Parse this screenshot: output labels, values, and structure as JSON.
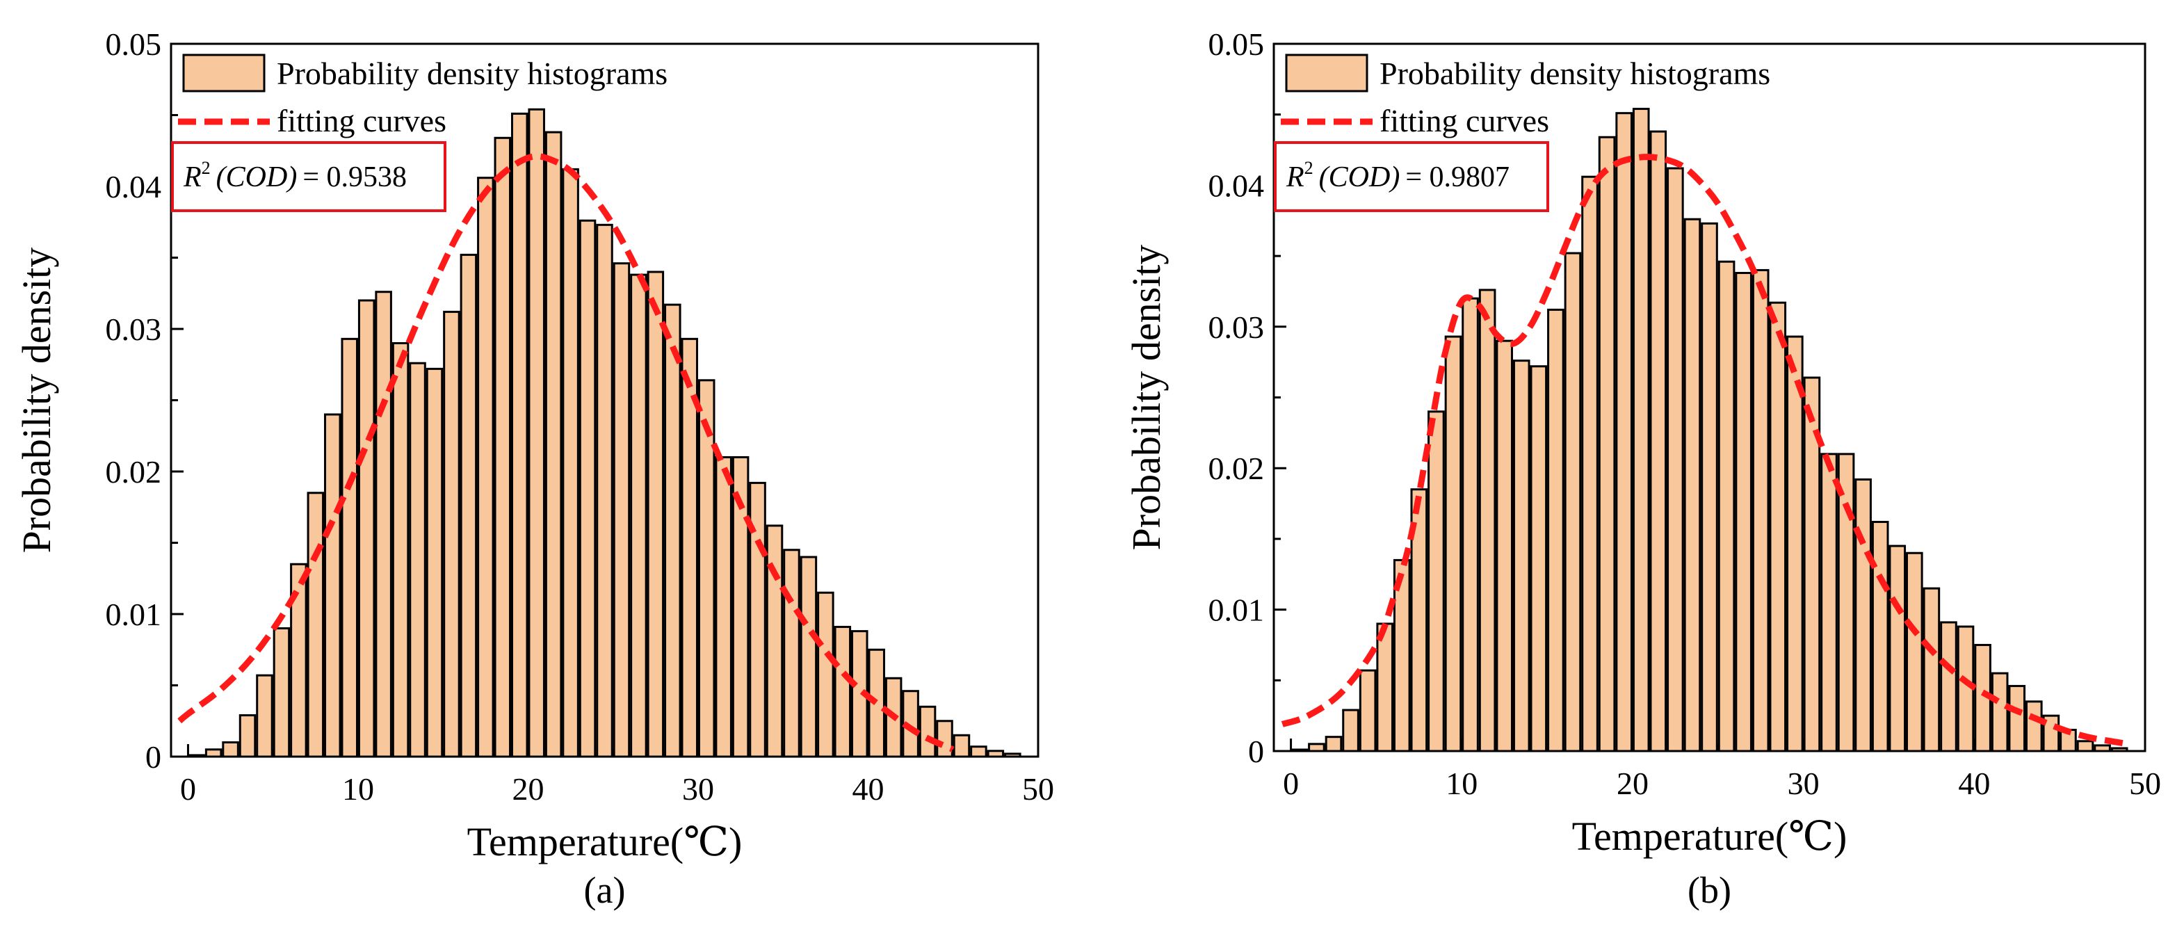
{
  "chart_data": [
    {
      "type": "bar",
      "panel_label": "(a)",
      "xlabel": "Temperature(℃)",
      "ylabel": "Probability density",
      "xlim": [
        -1,
        50
      ],
      "ylim": [
        0,
        0.05
      ],
      "xticks": [
        0,
        10,
        20,
        30,
        40,
        50
      ],
      "yticks": [
        0,
        0.01,
        0.02,
        0.03,
        0.04,
        0.05
      ],
      "ytick_labels": [
        "0",
        "0.01",
        "0.02",
        "0.03",
        "0.04",
        "0.05"
      ],
      "legend": {
        "placement": "top-left",
        "entries": [
          "Probability density histograms",
          "fitting curves"
        ]
      },
      "annotation": {
        "lhs": "R²(COD)",
        "r2_label": "R",
        "r2_sup": "2",
        "cod_label": "(COD)",
        "equals": "= ",
        "value": "0.9538"
      },
      "bins": [
        0,
        1,
        2,
        3,
        4,
        5,
        6,
        7,
        8,
        9,
        10,
        11,
        12,
        13,
        14,
        15,
        16,
        17,
        18,
        19,
        20,
        21,
        22,
        23,
        24,
        25,
        26,
        27,
        28,
        29,
        30,
        31,
        32,
        33,
        34,
        35,
        36,
        37,
        38,
        39,
        40,
        41,
        42,
        43,
        44,
        45,
        46,
        47,
        48
      ],
      "densities": [
        0.0001,
        0.0005,
        0.001,
        0.0029,
        0.0057,
        0.009,
        0.0135,
        0.0185,
        0.024,
        0.0293,
        0.032,
        0.0326,
        0.029,
        0.0276,
        0.0272,
        0.0312,
        0.0352,
        0.0406,
        0.0434,
        0.0451,
        0.0454,
        0.0438,
        0.0412,
        0.0376,
        0.0373,
        0.0346,
        0.0338,
        0.034,
        0.0317,
        0.0293,
        0.0264,
        0.021,
        0.021,
        0.0192,
        0.0162,
        0.0145,
        0.014,
        0.0115,
        0.0091,
        0.0088,
        0.0075,
        0.0055,
        0.0046,
        0.0035,
        0.0025,
        0.0015,
        0.0007,
        0.0004,
        0.0002
      ],
      "fit_curve": {
        "type": "gaussian",
        "x": [
          -0.5,
          0,
          2,
          4,
          6,
          8,
          10,
          12,
          14,
          16,
          18,
          20,
          21.5,
          23,
          25,
          27,
          29,
          31,
          33,
          35,
          37,
          39,
          41,
          43,
          45
        ],
        "y": [
          0.0025,
          0.003,
          0.0048,
          0.0073,
          0.0108,
          0.0153,
          0.0205,
          0.0262,
          0.0319,
          0.0369,
          0.0403,
          0.042,
          0.0418,
          0.0405,
          0.0373,
          0.0327,
          0.0274,
          0.0217,
          0.0164,
          0.0118,
          0.0082,
          0.0053,
          0.0033,
          0.0016,
          0.0005
        ]
      }
    },
    {
      "type": "bar",
      "panel_label": "(b)",
      "xlabel": "Temperature(℃)",
      "ylabel": "Probability density",
      "xlim": [
        -1,
        50
      ],
      "ylim": [
        0,
        0.05
      ],
      "xticks": [
        0,
        10,
        20,
        30,
        40,
        50
      ],
      "yticks": [
        0,
        0.01,
        0.02,
        0.03,
        0.04,
        0.05
      ],
      "ytick_labels": [
        "0",
        "0.01",
        "0.02",
        "0.03",
        "0.04",
        "0.05"
      ],
      "legend": {
        "placement": "top-left",
        "entries": [
          "Probability density histograms",
          "fitting curves"
        ]
      },
      "annotation": {
        "lhs": "R²(COD)",
        "r2_label": "R",
        "r2_sup": "2",
        "cod_label": "(COD)",
        "equals": "= ",
        "value": "0.9807"
      },
      "bins": [
        0,
        1,
        2,
        3,
        4,
        5,
        6,
        7,
        8,
        9,
        10,
        11,
        12,
        13,
        14,
        15,
        16,
        17,
        18,
        19,
        20,
        21,
        22,
        23,
        24,
        25,
        26,
        27,
        28,
        29,
        30,
        31,
        32,
        33,
        34,
        35,
        36,
        37,
        38,
        39,
        40,
        41,
        42,
        43,
        44,
        45,
        46,
        47,
        48
      ],
      "densities": [
        0.0001,
        0.0005,
        0.001,
        0.0029,
        0.0057,
        0.009,
        0.0135,
        0.0185,
        0.024,
        0.0293,
        0.032,
        0.0326,
        0.029,
        0.0276,
        0.0272,
        0.0312,
        0.0352,
        0.0406,
        0.0434,
        0.0451,
        0.0454,
        0.0438,
        0.0412,
        0.0376,
        0.0373,
        0.0346,
        0.0338,
        0.034,
        0.0317,
        0.0293,
        0.0264,
        0.021,
        0.021,
        0.0192,
        0.0162,
        0.0145,
        0.014,
        0.0115,
        0.0091,
        0.0088,
        0.0075,
        0.0055,
        0.0046,
        0.0035,
        0.0025,
        0.0015,
        0.0007,
        0.0004,
        0.0002
      ],
      "fit_curve": {
        "type": "bimodal",
        "x": [
          -0.5,
          1,
          3,
          5,
          6,
          7,
          8,
          9,
          10,
          11,
          12,
          13,
          14,
          15,
          16,
          17,
          18,
          19,
          20,
          21,
          22,
          23,
          24,
          25,
          26,
          27,
          28,
          29,
          30,
          31,
          32,
          33,
          34,
          35,
          36,
          37,
          38,
          39,
          40,
          41,
          42,
          43,
          44,
          45,
          46,
          47,
          48,
          49
        ],
        "y": [
          0.0019,
          0.0025,
          0.0042,
          0.0075,
          0.0108,
          0.015,
          0.0215,
          0.028,
          0.0318,
          0.0315,
          0.0295,
          0.0288,
          0.03,
          0.0325,
          0.0355,
          0.0384,
          0.0405,
          0.0415,
          0.0419,
          0.042,
          0.0418,
          0.0413,
          0.0402,
          0.0387,
          0.0366,
          0.0342,
          0.0313,
          0.0283,
          0.025,
          0.0218,
          0.0188,
          0.016,
          0.0134,
          0.0112,
          0.0093,
          0.0078,
          0.0065,
          0.0054,
          0.0045,
          0.0038,
          0.0031,
          0.0026,
          0.0021,
          0.0016,
          0.0012,
          0.0009,
          0.0007,
          0.0005
        ]
      }
    }
  ],
  "colors": {
    "bar_fill": "#F9C79C",
    "bar_stroke": "#000000",
    "curve": "#FF1A1A",
    "annotation_border": "#E8141B",
    "axis": "#000000"
  }
}
